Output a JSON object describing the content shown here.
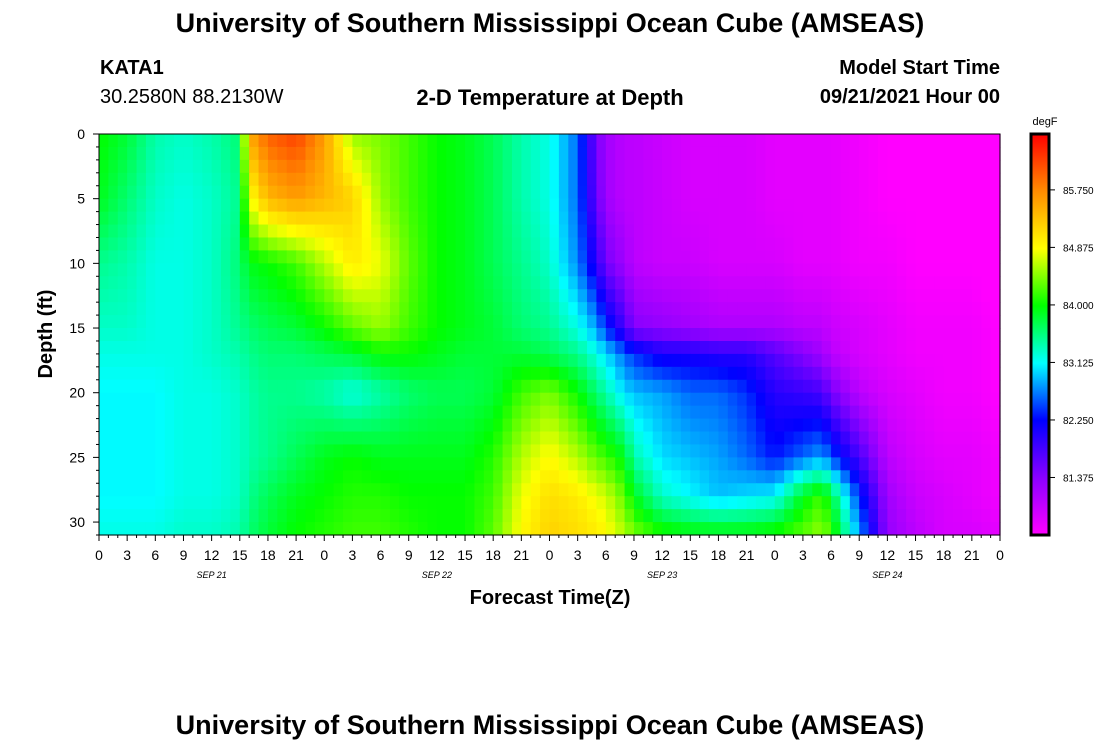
{
  "header": {
    "title": "University of Southern Mississippi Ocean Cube (AMSEAS)",
    "station": "KATA1",
    "coords": "30.2580N  88.2130W",
    "subtitle": "2-D Temperature at Depth",
    "model_label": "Model Start Time",
    "model_time": "09/21/2021 Hour 00"
  },
  "footer": {
    "title": "University of Southern Mississippi Ocean Cube (AMSEAS)"
  },
  "chart_data": {
    "type": "heatmap",
    "title": "2-D Temperature at Depth",
    "xlabel": "Forecast Time(Z)",
    "ylabel": "Depth (ft)",
    "x_unit": "hours since 09/21/2021 00Z",
    "xlim": [
      0,
      96
    ],
    "ylim": [
      31,
      0
    ],
    "x_ticks": [
      0,
      3,
      6,
      9,
      12,
      15,
      18,
      21,
      24,
      27,
      30,
      33,
      36,
      39,
      42,
      45,
      48,
      51,
      54,
      57,
      60,
      63,
      66,
      69,
      72,
      75,
      78,
      81,
      84,
      87,
      90,
      93,
      96
    ],
    "x_tick_labels": [
      "0",
      "3",
      "6",
      "9",
      "12",
      "15",
      "18",
      "21",
      "0",
      "3",
      "6",
      "9",
      "12",
      "15",
      "18",
      "21",
      "0",
      "3",
      "6",
      "9",
      "12",
      "15",
      "18",
      "21",
      "0",
      "3",
      "6",
      "9",
      "12",
      "15",
      "18",
      "21",
      "0"
    ],
    "y_ticks": [
      0,
      5,
      10,
      15,
      20,
      25,
      30
    ],
    "y_tick_labels": [
      "0",
      "5",
      "10",
      "15",
      "20",
      "25",
      "30"
    ],
    "day_labels": [
      {
        "x": 12,
        "label": "SEP 21"
      },
      {
        "x": 36,
        "label": "SEP 22"
      },
      {
        "x": 60,
        "label": "SEP 23"
      },
      {
        "x": 84,
        "label": "SEP 24"
      }
    ],
    "colorbar": {
      "unit": "degF",
      "range": [
        80.5,
        86.6
      ],
      "tick_values": [
        85.75,
        84.875,
        84.0,
        83.125,
        82.25,
        81.375
      ],
      "tick_labels": [
        "85.750",
        "84.875",
        "84.000",
        "83.125",
        "82.250",
        "81.375"
      ],
      "colors": [
        "#ff00ff",
        "#8a00ff",
        "#0000ff",
        "#00ffff",
        "#00ff00",
        "#ffff00",
        "#ff8c00",
        "#ff0000"
      ]
    },
    "depths": [
      0,
      5,
      10,
      15,
      17,
      20,
      25,
      28,
      31
    ],
    "times": [
      0,
      3,
      6,
      9,
      12,
      15,
      16,
      18,
      21,
      24,
      27,
      30,
      33,
      36,
      39,
      42,
      45,
      48,
      51,
      53,
      54,
      56,
      57,
      60,
      63,
      66,
      69,
      72,
      75,
      77,
      78,
      81,
      84,
      87,
      90,
      93,
      96
    ],
    "values": [
      [
        84.0,
        83.8,
        83.4,
        83.3,
        83.4,
        83.6,
        85.5,
        86.0,
        86.2,
        85.6,
        84.5,
        84.4,
        84.2,
        84.0,
        83.9,
        83.7,
        83.4,
        83.2,
        82.6,
        81.5,
        81.2,
        81.0,
        81.0,
        80.9,
        80.8,
        80.8,
        80.8,
        80.7,
        80.7,
        80.7,
        80.7,
        80.6,
        80.5,
        80.5,
        80.5,
        80.5,
        80.4
      ],
      [
        83.9,
        83.6,
        83.3,
        83.2,
        83.3,
        83.5,
        84.8,
        85.4,
        85.6,
        85.4,
        85.2,
        84.5,
        84.2,
        84.0,
        83.9,
        83.7,
        83.4,
        83.2,
        82.6,
        81.6,
        81.2,
        81.0,
        81.0,
        80.9,
        80.8,
        80.8,
        80.8,
        80.7,
        80.7,
        80.7,
        80.7,
        80.6,
        80.5,
        80.5,
        80.5,
        80.5,
        80.4
      ],
      [
        83.5,
        83.4,
        83.2,
        83.2,
        83.3,
        83.6,
        83.9,
        84.0,
        84.2,
        84.6,
        85.0,
        84.8,
        84.3,
        84.0,
        83.9,
        83.7,
        83.5,
        83.3,
        82.7,
        82.0,
        81.5,
        81.2,
        81.0,
        80.9,
        80.9,
        80.8,
        80.8,
        80.8,
        80.7,
        80.7,
        80.7,
        80.6,
        80.6,
        80.5,
        80.5,
        80.5,
        80.4
      ],
      [
        83.3,
        83.3,
        83.2,
        83.2,
        83.3,
        83.5,
        83.6,
        83.7,
        83.8,
        84.0,
        84.3,
        84.5,
        84.2,
        84.0,
        83.9,
        83.8,
        83.6,
        83.5,
        83.2,
        82.8,
        82.4,
        81.8,
        81.4,
        81.3,
        81.2,
        81.1,
        81.1,
        81.1,
        81.0,
        81.0,
        80.9,
        80.8,
        80.7,
        80.6,
        80.6,
        80.6,
        80.5
      ],
      [
        83.2,
        83.2,
        83.2,
        83.2,
        83.3,
        83.4,
        83.5,
        83.6,
        83.6,
        83.7,
        83.8,
        84.0,
        84.0,
        83.9,
        83.8,
        83.8,
        83.8,
        83.7,
        83.5,
        83.2,
        83.0,
        82.6,
        82.4,
        82.1,
        82.1,
        82.0,
        82.0,
        81.7,
        81.4,
        81.2,
        81.0,
        80.8,
        80.7,
        80.6,
        80.6,
        80.6,
        80.5
      ],
      [
        83.1,
        83.1,
        83.1,
        83.2,
        83.2,
        83.3,
        83.4,
        83.5,
        83.5,
        83.4,
        83.2,
        83.4,
        83.6,
        83.7,
        83.7,
        83.8,
        84.2,
        84.4,
        84.0,
        83.6,
        83.4,
        83.0,
        82.9,
        82.8,
        82.6,
        82.6,
        82.4,
        82.0,
        81.9,
        81.8,
        81.5,
        81.0,
        80.8,
        80.7,
        80.6,
        80.6,
        80.5
      ],
      [
        83.1,
        83.1,
        83.1,
        83.2,
        83.2,
        83.3,
        83.4,
        83.5,
        83.7,
        83.9,
        84.0,
        83.9,
        83.9,
        83.9,
        83.9,
        84.1,
        84.6,
        84.9,
        84.6,
        84.3,
        84.2,
        83.9,
        83.4,
        83.0,
        82.9,
        82.8,
        82.6,
        82.3,
        82.6,
        82.8,
        82.5,
        81.8,
        81.0,
        80.8,
        80.7,
        80.7,
        80.6
      ],
      [
        83.1,
        83.1,
        83.1,
        83.2,
        83.2,
        83.3,
        83.5,
        83.7,
        83.9,
        84.0,
        84.1,
        84.1,
        84.0,
        84.0,
        84.0,
        84.2,
        84.8,
        85.1,
        85.0,
        84.8,
        84.7,
        84.3,
        83.9,
        83.3,
        83.1,
        82.9,
        83.0,
        83.1,
        83.9,
        84.2,
        83.8,
        82.4,
        81.2,
        80.9,
        80.8,
        80.7,
        80.6
      ],
      [
        83.2,
        83.2,
        83.2,
        83.3,
        83.3,
        83.4,
        83.6,
        83.8,
        84.0,
        84.1,
        84.2,
        84.2,
        84.1,
        84.0,
        84.0,
        84.3,
        84.9,
        85.2,
        85.1,
        85.0,
        84.9,
        84.6,
        84.4,
        84.1,
        84.0,
        84.0,
        84.0,
        84.1,
        84.3,
        84.5,
        84.2,
        82.8,
        81.3,
        81.0,
        80.8,
        80.8,
        80.7
      ]
    ]
  }
}
